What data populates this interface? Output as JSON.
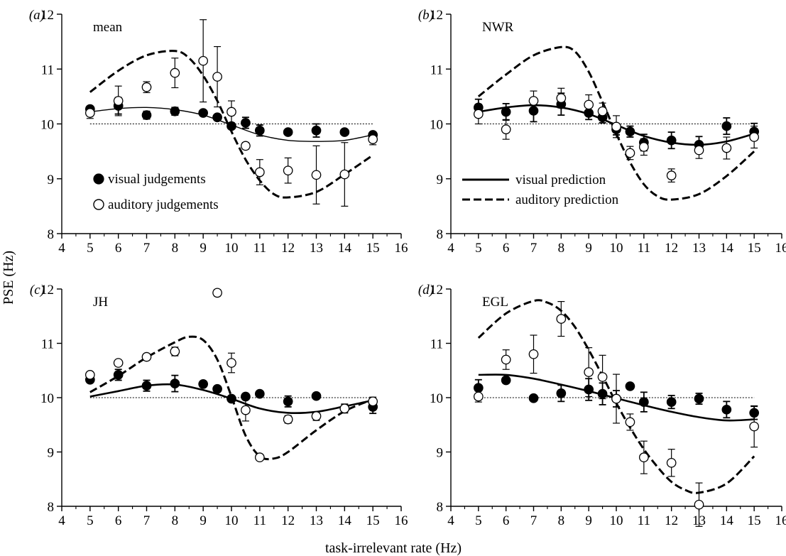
{
  "figure": {
    "ylabel": "PSE (Hz)",
    "xlabel": "task-irrelevant rate (Hz)"
  },
  "legend_a": {
    "visual": "visual judgements",
    "auditory": "auditory judgements"
  },
  "legend_b": {
    "visual": "visual prediction",
    "auditory": "auditory prediction"
  },
  "chart_data": [
    {
      "type": "scatter",
      "panel": "(a)",
      "title": "mean",
      "xlim": [
        4,
        16
      ],
      "ylim": [
        8,
        12
      ],
      "xticks": [
        4,
        5,
        6,
        7,
        8,
        9,
        10,
        11,
        12,
        13,
        14,
        15,
        16
      ],
      "yticks": [
        8,
        9,
        10,
        11,
        12
      ],
      "reference_line": 10,
      "series": [
        {
          "name": "visual judgements",
          "marker": "filled",
          "x": [
            5,
            6,
            7,
            8,
            9,
            9.5,
            10,
            10.5,
            11,
            12,
            13,
            14,
            15
          ],
          "y": [
            10.27,
            10.33,
            10.16,
            10.23,
            10.2,
            10.12,
            9.96,
            10.02,
            9.88,
            9.85,
            9.88,
            9.85,
            9.8
          ],
          "err": [
            0.05,
            0.15,
            0.07,
            0.07,
            0.04,
            0.04,
            0.04,
            0.1,
            0.1,
            0.04,
            0.12,
            0.04,
            0.05
          ]
        },
        {
          "name": "auditory judgements",
          "marker": "open",
          "x": [
            5,
            6,
            7,
            8,
            9,
            9.5,
            10,
            10.5,
            11,
            12,
            13,
            14,
            15
          ],
          "y": [
            10.2,
            10.42,
            10.67,
            10.93,
            11.15,
            10.86,
            10.22,
            9.6,
            9.12,
            9.15,
            9.07,
            9.08,
            9.72
          ],
          "err": [
            0.1,
            0.27,
            0.1,
            0.27,
            0.75,
            0.55,
            0.2,
            0.06,
            0.23,
            0.23,
            0.53,
            0.58,
            0.1
          ]
        },
        {
          "name": "visual prediction",
          "line": "solid",
          "x": [
            5,
            6,
            7,
            8,
            9,
            10,
            11,
            12,
            13,
            14,
            15
          ],
          "y": [
            10.22,
            10.28,
            10.3,
            10.26,
            10.16,
            9.98,
            9.8,
            9.7,
            9.68,
            9.7,
            9.8
          ]
        },
        {
          "name": "auditory prediction",
          "line": "dashed",
          "x": [
            5,
            6,
            7,
            8,
            8.5,
            9,
            9.5,
            10,
            10.5,
            11,
            11.5,
            12,
            13,
            14,
            15
          ],
          "y": [
            10.58,
            10.97,
            11.25,
            11.33,
            11.2,
            10.88,
            10.42,
            9.86,
            9.35,
            8.97,
            8.72,
            8.66,
            8.76,
            9.08,
            9.43
          ]
        }
      ]
    },
    {
      "type": "scatter",
      "panel": "(b)",
      "title": "NWR",
      "xlim": [
        4,
        16
      ],
      "ylim": [
        8,
        12
      ],
      "xticks": [
        4,
        5,
        6,
        7,
        8,
        9,
        10,
        11,
        12,
        13,
        14,
        15,
        16
      ],
      "yticks": [
        8,
        9,
        10,
        11,
        12
      ],
      "reference_line": 10,
      "series": [
        {
          "name": "visual judgements",
          "marker": "filled",
          "x": [
            5,
            6,
            7,
            8,
            9,
            9.5,
            10,
            10.5,
            11,
            12,
            13,
            14,
            15
          ],
          "y": [
            10.3,
            10.22,
            10.24,
            10.36,
            10.2,
            10.12,
            9.9,
            9.86,
            9.66,
            9.7,
            9.62,
            9.96,
            9.86
          ],
          "err": [
            0.15,
            0.15,
            0.2,
            0.2,
            0.12,
            0.1,
            0.1,
            0.1,
            0.15,
            0.15,
            0.15,
            0.15,
            0.15
          ]
        },
        {
          "name": "auditory judgements",
          "marker": "open",
          "x": [
            5,
            6,
            7,
            8,
            9,
            9.5,
            10,
            10.5,
            11,
            12,
            13,
            14,
            15
          ],
          "y": [
            10.18,
            9.9,
            10.42,
            10.47,
            10.35,
            10.23,
            9.95,
            9.47,
            9.58,
            9.06,
            9.52,
            9.56,
            9.76
          ],
          "err": [
            0.18,
            0.18,
            0.18,
            0.18,
            0.18,
            0.15,
            0.2,
            0.12,
            0.15,
            0.12,
            0.15,
            0.2,
            0.2
          ]
        },
        {
          "name": "visual prediction",
          "line": "solid",
          "x": [
            5,
            6,
            7,
            8,
            9,
            10,
            11,
            12,
            13,
            14,
            15
          ],
          "y": [
            10.22,
            10.3,
            10.34,
            10.3,
            10.18,
            9.98,
            9.78,
            9.66,
            9.62,
            9.68,
            9.82
          ]
        },
        {
          "name": "auditory prediction",
          "line": "dashed",
          "x": [
            5,
            6,
            7,
            8,
            8.5,
            9,
            9.5,
            10,
            10.5,
            11,
            11.5,
            12,
            13,
            14,
            15
          ],
          "y": [
            10.5,
            10.9,
            11.25,
            11.4,
            11.32,
            10.95,
            10.4,
            9.82,
            9.3,
            8.9,
            8.68,
            8.62,
            8.72,
            9.05,
            9.5
          ]
        }
      ]
    },
    {
      "type": "scatter",
      "panel": "(c)",
      "title": "JH",
      "xlim": [
        4,
        16
      ],
      "ylim": [
        8,
        12
      ],
      "xticks": [
        4,
        5,
        6,
        7,
        8,
        9,
        10,
        11,
        12,
        13,
        14,
        15,
        16
      ],
      "yticks": [
        8,
        9,
        10,
        11,
        12
      ],
      "reference_line": 10,
      "series": [
        {
          "name": "visual judgements",
          "marker": "filled",
          "x": [
            5,
            6,
            7,
            8,
            9,
            9.5,
            10,
            10.5,
            11,
            12,
            13,
            14,
            15
          ],
          "y": [
            10.33,
            10.42,
            10.22,
            10.26,
            10.25,
            10.16,
            9.98,
            10.02,
            10.07,
            9.93,
            10.03,
            9.8,
            9.83
          ],
          "err": [
            0.05,
            0.1,
            0.1,
            0.15,
            0.05,
            0.05,
            0.05,
            0.05,
            0.05,
            0.1,
            0.05,
            0.08,
            0.12
          ]
        },
        {
          "name": "auditory judgements",
          "marker": "open",
          "x": [
            5,
            6,
            7,
            8,
            9.5,
            10,
            10.5,
            11,
            12,
            13,
            14,
            15
          ],
          "y": [
            10.42,
            10.64,
            10.75,
            10.85,
            11.93,
            10.64,
            9.77,
            8.9,
            9.6,
            9.66,
            9.8,
            9.93
          ],
          "err": [
            0.05,
            0.05,
            0.05,
            0.08,
            0.06,
            0.18,
            0.2,
            0.04,
            0.07,
            0.08,
            0.05,
            0.08
          ]
        },
        {
          "name": "visual prediction",
          "line": "solid",
          "x": [
            5,
            6,
            7,
            8,
            9,
            10,
            11,
            12,
            13,
            14,
            15
          ],
          "y": [
            10.02,
            10.12,
            10.22,
            10.24,
            10.14,
            9.98,
            9.8,
            9.72,
            9.74,
            9.84,
            9.95
          ]
        },
        {
          "name": "auditory prediction",
          "line": "dashed",
          "x": [
            5,
            6,
            7,
            8,
            8.5,
            9,
            9.5,
            10,
            10.5,
            11,
            11.5,
            12,
            13,
            14,
            15
          ],
          "y": [
            10.1,
            10.4,
            10.74,
            11.02,
            11.12,
            11.06,
            10.7,
            10.02,
            9.3,
            8.92,
            8.88,
            9.0,
            9.4,
            9.75,
            9.97
          ]
        }
      ]
    },
    {
      "type": "scatter",
      "panel": "(d)",
      "title": "EGL",
      "xlim": [
        4,
        16
      ],
      "ylim": [
        8,
        12
      ],
      "xticks": [
        4,
        5,
        6,
        7,
        8,
        9,
        10,
        11,
        12,
        13,
        14,
        15,
        16
      ],
      "yticks": [
        8,
        9,
        10,
        11,
        12
      ],
      "reference_line": 10,
      "series": [
        {
          "name": "visual judgements",
          "marker": "filled",
          "x": [
            5,
            6,
            7,
            8,
            9,
            9.5,
            10,
            10.5,
            11,
            12,
            13,
            14,
            15
          ],
          "y": [
            10.18,
            10.32,
            9.99,
            10.08,
            10.15,
            10.07,
            9.98,
            10.21,
            9.92,
            9.92,
            9.98,
            9.78,
            9.72
          ],
          "err": [
            0.15,
            0.05,
            0.05,
            0.15,
            0.2,
            0.2,
            0.15,
            0.05,
            0.18,
            0.12,
            0.1,
            0.15,
            0.12
          ]
        },
        {
          "name": "auditory judgements",
          "marker": "open",
          "x": [
            5,
            6,
            7,
            8,
            9,
            9.5,
            10,
            10.5,
            11,
            12,
            13,
            15
          ],
          "y": [
            10.02,
            10.7,
            10.8,
            11.45,
            10.47,
            10.38,
            9.98,
            9.55,
            8.9,
            8.8,
            8.03,
            9.47
          ],
          "err": [
            0.1,
            0.18,
            0.35,
            0.32,
            0.45,
            0.4,
            0.45,
            0.15,
            0.3,
            0.25,
            0.4,
            0.38
          ]
        },
        {
          "name": "visual prediction",
          "line": "solid",
          "x": [
            5,
            6,
            7,
            8,
            9,
            10,
            11,
            12,
            13,
            14,
            15
          ],
          "y": [
            10.42,
            10.42,
            10.35,
            10.24,
            10.12,
            9.99,
            9.86,
            9.74,
            9.64,
            9.58,
            9.6
          ]
        },
        {
          "name": "auditory prediction",
          "line": "dashed",
          "x": [
            5,
            6,
            7,
            7.5,
            8,
            8.5,
            9,
            9.5,
            10,
            10.5,
            11,
            11.5,
            12,
            12.5,
            13,
            14,
            15
          ],
          "y": [
            11.1,
            11.55,
            11.78,
            11.75,
            11.6,
            11.3,
            10.88,
            10.4,
            9.9,
            9.45,
            9.05,
            8.72,
            8.45,
            8.3,
            8.25,
            8.42,
            8.92
          ]
        }
      ]
    }
  ]
}
